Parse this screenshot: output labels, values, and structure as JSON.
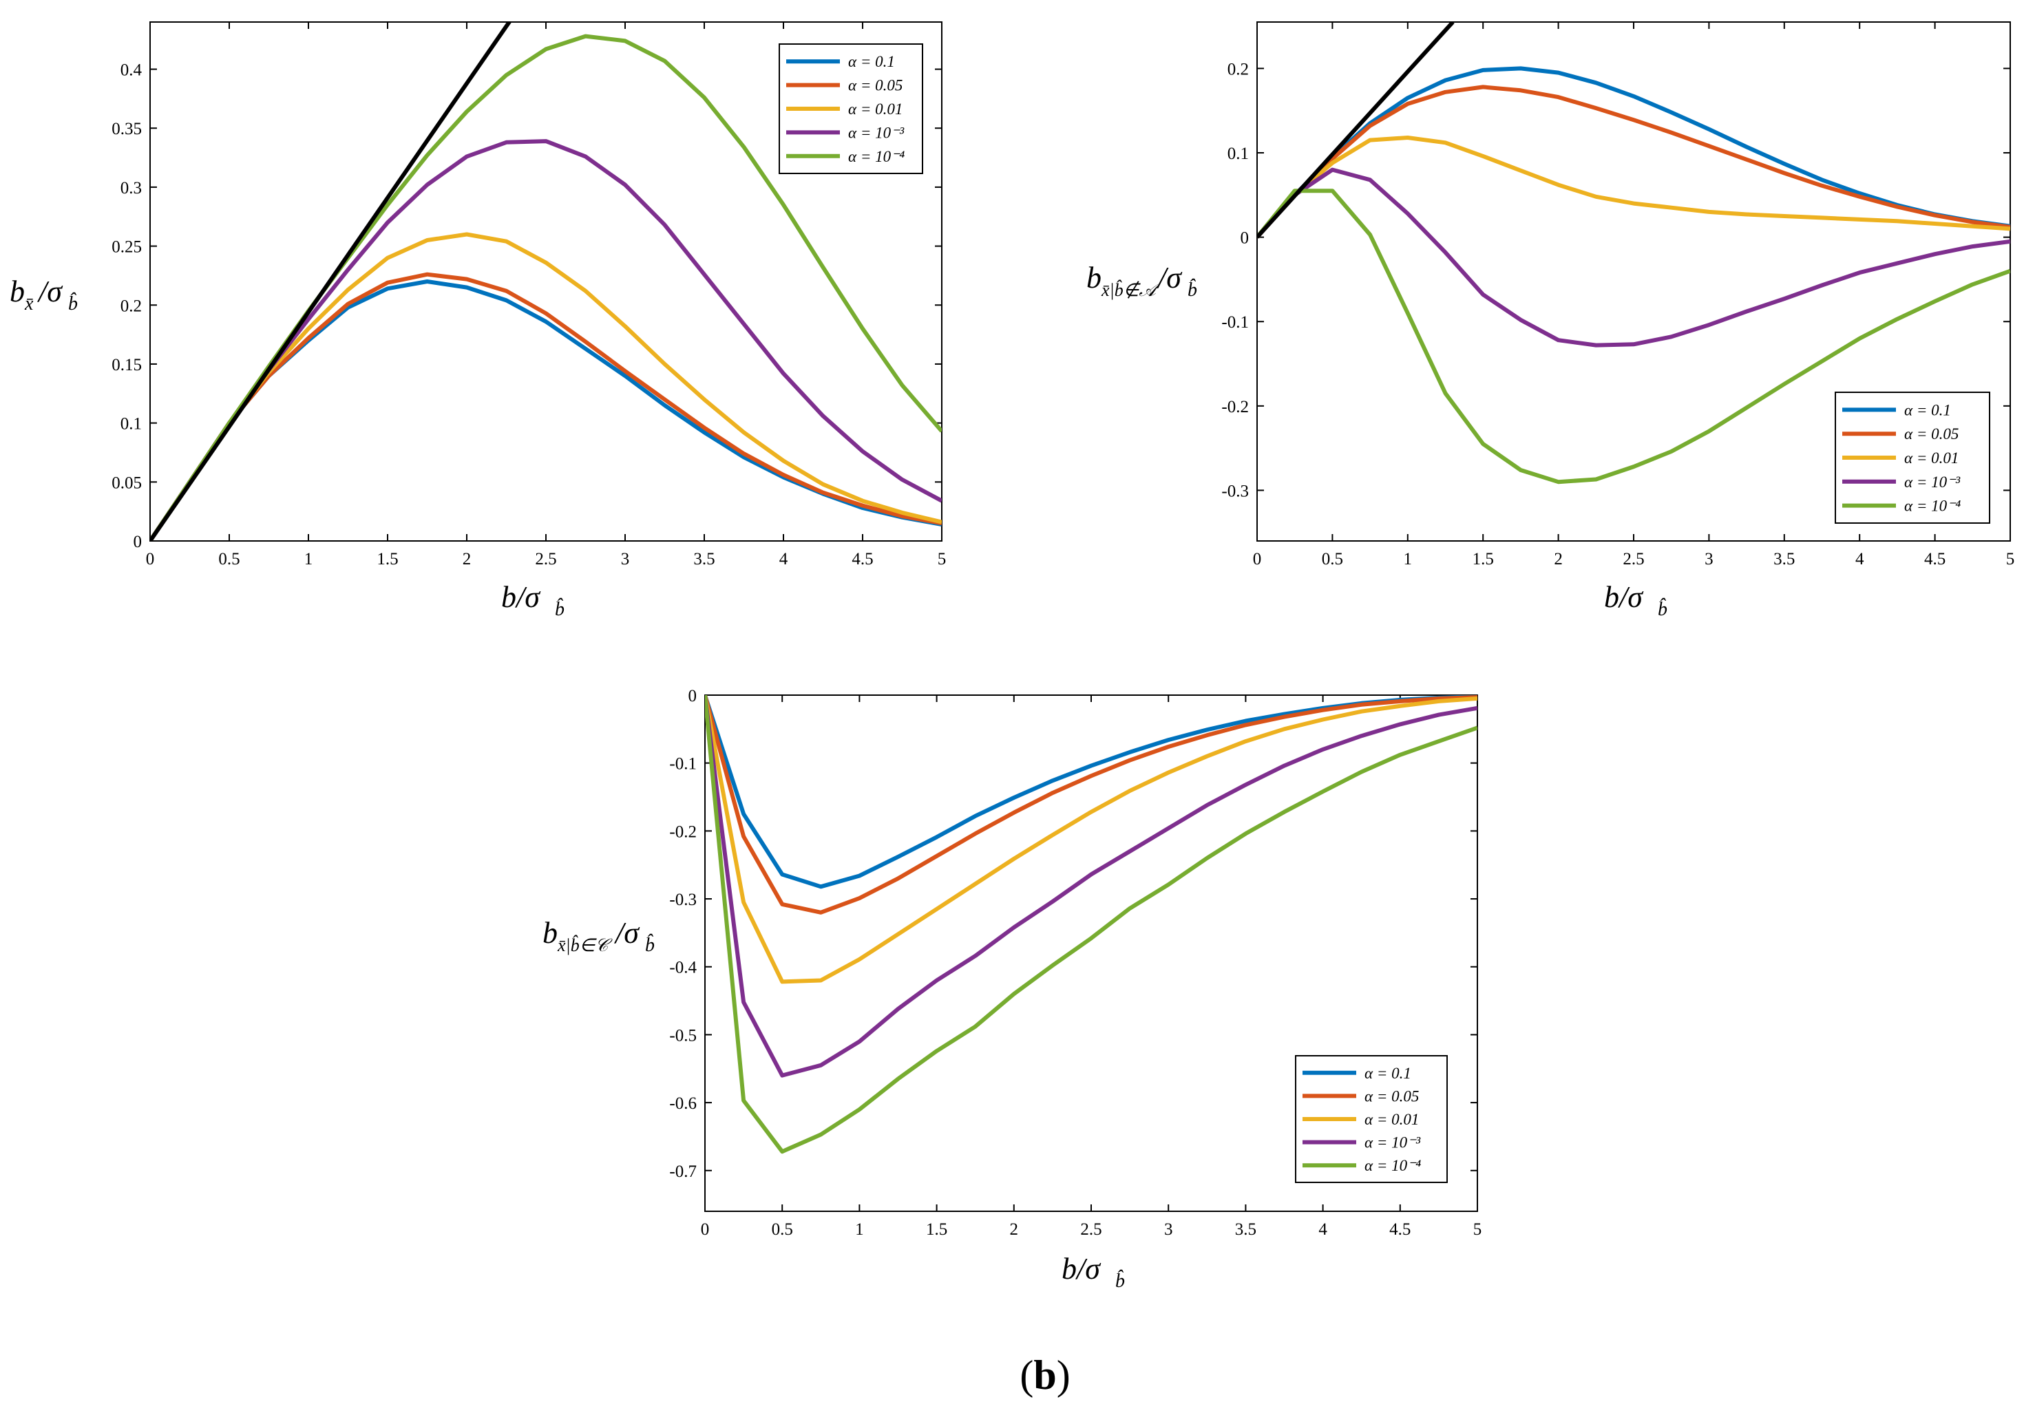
{
  "figure_caption": {
    "paren_open": "(",
    "letter": "b",
    "paren_close": ")"
  },
  "chart_data": [
    {
      "type": "line",
      "title": "",
      "xlabel": "b/σ_b̂",
      "ylabel": "b_x̄/σ_b̂",
      "xlim": [
        0,
        5
      ],
      "ylim": [
        0,
        0.44
      ],
      "x_ticks": [
        "0",
        "0.5",
        "1",
        "1.5",
        "2",
        "2.5",
        "3",
        "3.5",
        "4",
        "4.5",
        "5"
      ],
      "y_ticks": [
        "0",
        "0.05",
        "0.1",
        "0.15",
        "0.2",
        "0.25",
        "0.3",
        "0.35",
        "0.4"
      ],
      "x": [
        0,
        0.25,
        0.5,
        0.75,
        1,
        1.25,
        1.5,
        1.75,
        2,
        2.25,
        2.5,
        2.75,
        3,
        3.25,
        3.5,
        3.75,
        4,
        4.25,
        4.5,
        4.75,
        5
      ],
      "legend_position": "top-right",
      "reference_line": {
        "name": "",
        "color": "#000000",
        "x": [
          0,
          2.32
        ],
        "y": [
          0,
          0.45
        ]
      },
      "series": [
        {
          "name": "α = 0.1",
          "color": "#0072BD",
          "values": [
            0,
            0.05,
            0.1,
            0.14,
            0.17,
            0.198,
            0.214,
            0.22,
            0.215,
            0.204,
            0.186,
            0.163,
            0.14,
            0.115,
            0.092,
            0.071,
            0.054,
            0.04,
            0.028,
            0.02,
            0.014
          ]
        },
        {
          "name": "α = 0.05",
          "color": "#D95319",
          "values": [
            0,
            0.05,
            0.1,
            0.14,
            0.172,
            0.201,
            0.219,
            0.226,
            0.222,
            0.212,
            0.193,
            0.169,
            0.144,
            0.12,
            0.096,
            0.074,
            0.056,
            0.041,
            0.03,
            0.021,
            0.015
          ]
        },
        {
          "name": "α = 0.01",
          "color": "#EDB120",
          "values": [
            0,
            0.05,
            0.1,
            0.143,
            0.18,
            0.213,
            0.24,
            0.255,
            0.26,
            0.254,
            0.236,
            0.212,
            0.182,
            0.15,
            0.12,
            0.092,
            0.068,
            0.048,
            0.034,
            0.024,
            0.016
          ]
        },
        {
          "name": "α = 10⁻³",
          "color": "#7E2F8E",
          "values": [
            0,
            0.05,
            0.1,
            0.145,
            0.188,
            0.23,
            0.27,
            0.302,
            0.326,
            0.338,
            0.339,
            0.326,
            0.302,
            0.268,
            0.226,
            0.184,
            0.142,
            0.106,
            0.076,
            0.052,
            0.034
          ]
        },
        {
          "name": "α = 10⁻⁴",
          "color": "#77AC30",
          "values": [
            0,
            0.05,
            0.1,
            0.148,
            0.195,
            0.24,
            0.285,
            0.327,
            0.364,
            0.395,
            0.417,
            0.428,
            0.424,
            0.407,
            0.376,
            0.334,
            0.285,
            0.232,
            0.18,
            0.132,
            0.093
          ]
        }
      ]
    },
    {
      "type": "line",
      "title": "",
      "xlabel": "b/σ_b̂",
      "ylabel": "b_x̄|b̂∉𝒜/σ_b̂",
      "xlim": [
        0,
        5
      ],
      "ylim": [
        -0.36,
        0.255
      ],
      "x_ticks": [
        "0",
        "0.5",
        "1",
        "1.5",
        "2",
        "2.5",
        "3",
        "3.5",
        "4",
        "4.5",
        "5"
      ],
      "y_ticks": [
        "-0.3",
        "-0.2",
        "-0.1",
        "0",
        "0.1",
        "0.2"
      ],
      "x": [
        0,
        0.25,
        0.5,
        0.75,
        1,
        1.25,
        1.5,
        1.75,
        2,
        2.25,
        2.5,
        2.75,
        3,
        3.25,
        3.5,
        3.75,
        4,
        4.25,
        4.5,
        4.75,
        5
      ],
      "legend_position": "bottom-right",
      "reference_line": {
        "name": "",
        "color": "#000000",
        "x": [
          0,
          1.3
        ],
        "y": [
          0,
          0.255
        ]
      },
      "series": [
        {
          "name": "α = 0.1",
          "color": "#0072BD",
          "values": [
            0,
            0.05,
            0.095,
            0.135,
            0.165,
            0.186,
            0.198,
            0.2,
            0.195,
            0.183,
            0.167,
            0.148,
            0.128,
            0.107,
            0.087,
            0.068,
            0.052,
            0.038,
            0.027,
            0.019,
            0.013
          ]
        },
        {
          "name": "α = 0.05",
          "color": "#D95319",
          "values": [
            0,
            0.05,
            0.093,
            0.132,
            0.158,
            0.172,
            0.178,
            0.174,
            0.166,
            0.153,
            0.139,
            0.124,
            0.108,
            0.092,
            0.076,
            0.061,
            0.048,
            0.036,
            0.026,
            0.018,
            0.012
          ]
        },
        {
          "name": "α = 0.01",
          "color": "#EDB120",
          "values": [
            0,
            0.05,
            0.088,
            0.115,
            0.118,
            0.112,
            0.096,
            0.079,
            0.062,
            0.048,
            0.04,
            0.035,
            0.03,
            0.027,
            0.025,
            0.023,
            0.021,
            0.019,
            0.016,
            0.013,
            0.01
          ]
        },
        {
          "name": "α = 10⁻³",
          "color": "#7E2F8E",
          "values": [
            0,
            0.05,
            0.08,
            0.068,
            0.028,
            -0.018,
            -0.068,
            -0.098,
            -0.122,
            -0.128,
            -0.127,
            -0.118,
            -0.104,
            -0.088,
            -0.073,
            -0.057,
            -0.042,
            -0.031,
            -0.02,
            -0.011,
            -0.005
          ]
        },
        {
          "name": "α = 10⁻⁴",
          "color": "#77AC30",
          "values": [
            0,
            0.055,
            0.055,
            0.003,
            -0.09,
            -0.185,
            -0.245,
            -0.276,
            -0.29,
            -0.287,
            -0.272,
            -0.254,
            -0.23,
            -0.202,
            -0.174,
            -0.147,
            -0.12,
            -0.097,
            -0.076,
            -0.056,
            -0.04
          ]
        }
      ]
    },
    {
      "type": "line",
      "title": "",
      "xlabel": "b/σ_b̂",
      "ylabel": "b_x̄|b̂∈𝒞/σ_b̂",
      "xlim": [
        0,
        5
      ],
      "ylim": [
        -0.76,
        0
      ],
      "x_ticks": [
        "0",
        "0.5",
        "1",
        "1.5",
        "2",
        "2.5",
        "3",
        "3.5",
        "4",
        "4.5",
        "5"
      ],
      "y_ticks": [
        "-0.7",
        "-0.6",
        "-0.5",
        "-0.4",
        "-0.3",
        "-0.2",
        "-0.1",
        "0"
      ],
      "x": [
        0,
        0.25,
        0.5,
        0.75,
        1,
        1.25,
        1.5,
        1.75,
        2,
        2.25,
        2.5,
        2.75,
        3,
        3.25,
        3.5,
        3.75,
        4,
        4.25,
        4.5,
        4.75,
        5
      ],
      "legend_position": "bottom-right",
      "series": [
        {
          "name": "α = 0.1",
          "color": "#0072BD",
          "values": [
            0,
            -0.175,
            -0.264,
            -0.282,
            -0.266,
            -0.238,
            -0.209,
            -0.178,
            -0.151,
            -0.126,
            -0.104,
            -0.084,
            -0.066,
            -0.051,
            -0.038,
            -0.028,
            -0.019,
            -0.012,
            -0.007,
            -0.004,
            -0.002
          ]
        },
        {
          "name": "α = 0.05",
          "color": "#D95319",
          "values": [
            0,
            -0.208,
            -0.308,
            -0.32,
            -0.299,
            -0.27,
            -0.237,
            -0.204,
            -0.173,
            -0.144,
            -0.119,
            -0.096,
            -0.076,
            -0.059,
            -0.044,
            -0.032,
            -0.022,
            -0.014,
            -0.009,
            -0.005,
            -0.003
          ]
        },
        {
          "name": "α = 0.01",
          "color": "#EDB120",
          "values": [
            0,
            -0.305,
            -0.422,
            -0.42,
            -0.389,
            -0.352,
            -0.315,
            -0.278,
            -0.241,
            -0.206,
            -0.172,
            -0.141,
            -0.114,
            -0.09,
            -0.068,
            -0.05,
            -0.036,
            -0.024,
            -0.016,
            -0.009,
            -0.005
          ]
        },
        {
          "name": "α = 10⁻³",
          "color": "#7E2F8E",
          "values": [
            0,
            -0.452,
            -0.56,
            -0.545,
            -0.51,
            -0.462,
            -0.42,
            -0.384,
            -0.342,
            -0.304,
            -0.264,
            -0.23,
            -0.196,
            -0.162,
            -0.132,
            -0.104,
            -0.08,
            -0.06,
            -0.043,
            -0.029,
            -0.019
          ]
        },
        {
          "name": "α = 10⁻⁴",
          "color": "#77AC30",
          "values": [
            0,
            -0.597,
            -0.672,
            -0.647,
            -0.61,
            -0.565,
            -0.524,
            -0.488,
            -0.44,
            -0.398,
            -0.358,
            -0.314,
            -0.279,
            -0.24,
            -0.204,
            -0.172,
            -0.142,
            -0.113,
            -0.088,
            -0.068,
            -0.048
          ]
        }
      ]
    }
  ]
}
